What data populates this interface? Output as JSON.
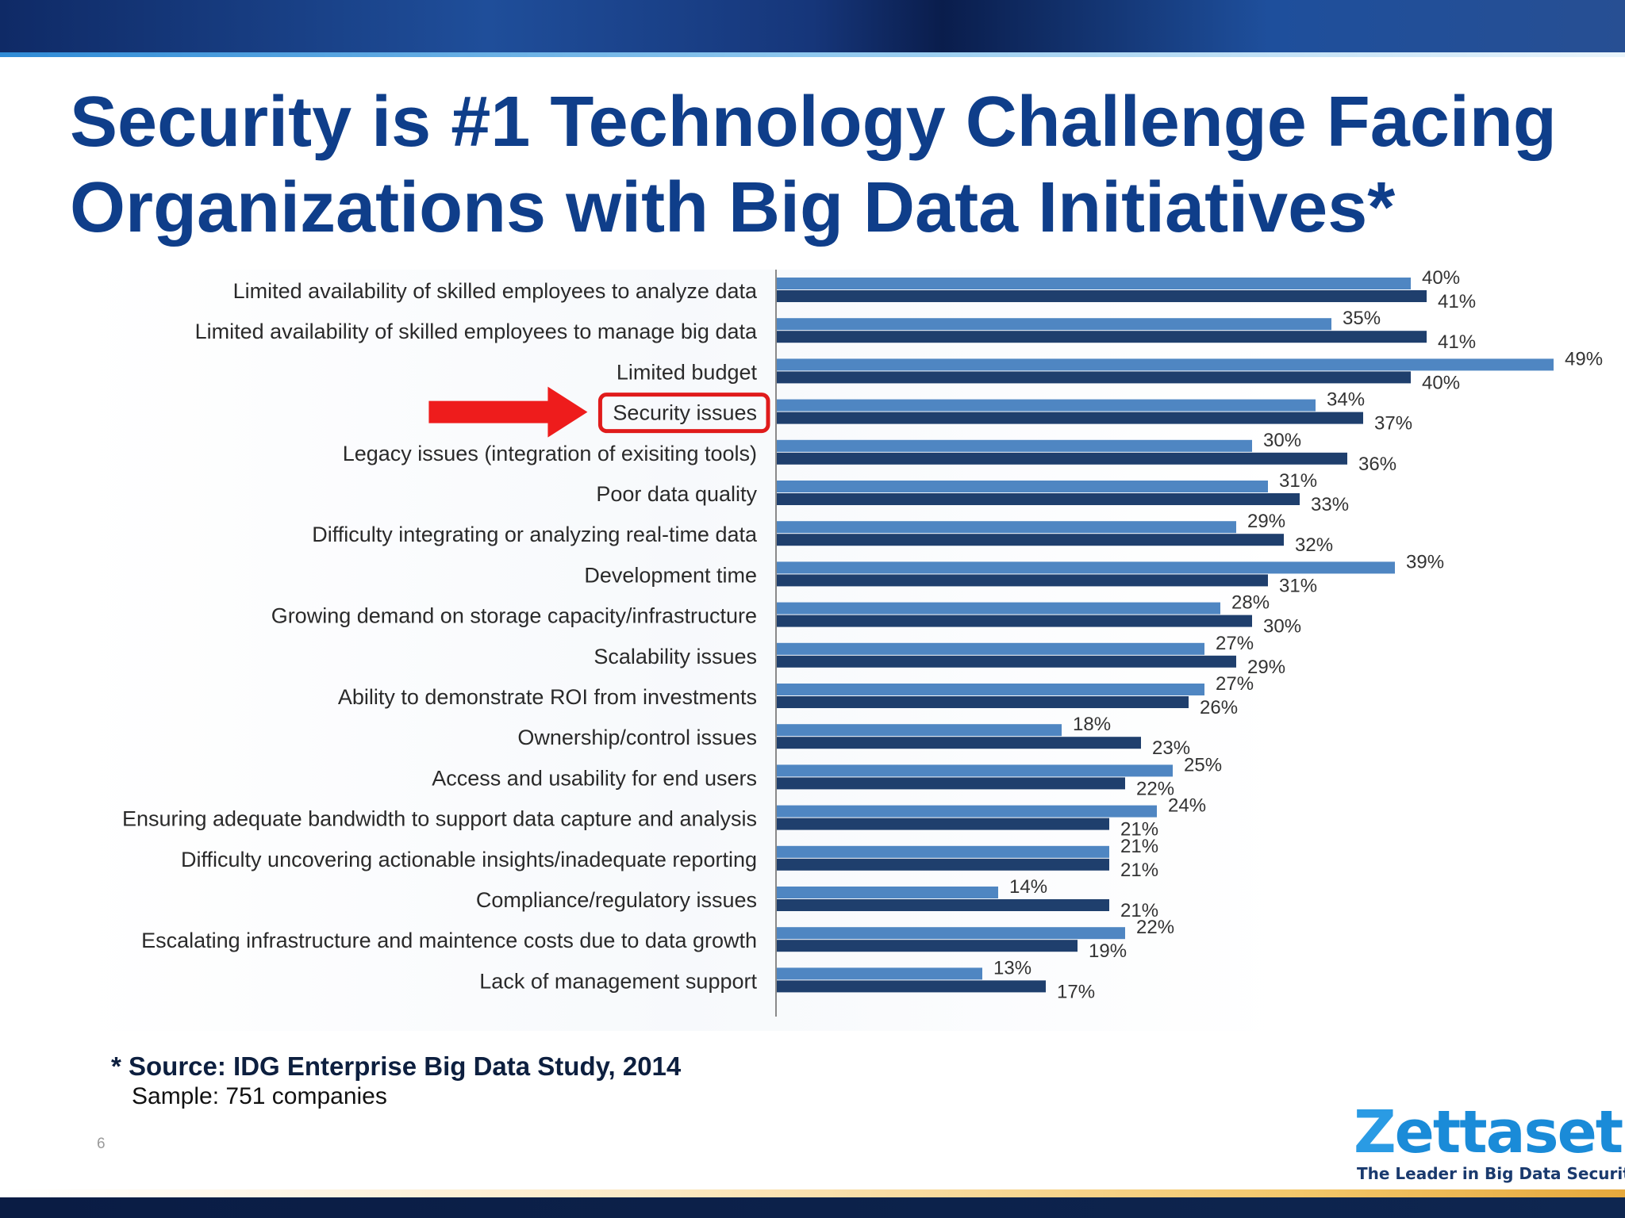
{
  "slide": {
    "title_line1": "Security is #1 Technology Challenge Facing",
    "title_line2": "Organizations with Big Data Initiatives*",
    "source": "* Source: IDG Enterprise Big Data Study, 2014",
    "sample": "Sample: 751 companies",
    "page_number": "6"
  },
  "logo": {
    "name_z": "Z",
    "name_rest": "ettaset",
    "tagline": "The Leader in Big Data Security"
  },
  "highlight": {
    "category": "Security issues",
    "box_color": "#e01b1b",
    "arrow_color": "#ee1c1c"
  },
  "colors": {
    "title": "#0f3e8a",
    "series_light": "#4f86c2",
    "series_dark": "#1f3f6d"
  },
  "chart_data": {
    "type": "bar",
    "orientation": "horizontal",
    "xlim": [
      0,
      50
    ],
    "value_suffix": "%",
    "categories": [
      "Limited availability of skilled employees to analyze data",
      "Limited availability of skilled employees to manage big data",
      "Limited budget",
      "Security issues",
      "Legacy issues (integration of exisiting tools)",
      "Poor data quality",
      "Difficulty integrating or analyzing real-time data",
      "Development time",
      "Growing demand on storage capacity/infrastructure",
      "Scalability issues",
      "Ability to demonstrate ROI from investments",
      "Ownership/control issues",
      "Access and usability for end users",
      "Ensuring adequate bandwidth to support data capture and analysis",
      "Difficulty uncovering actionable insights/inadequate reporting",
      "Compliance/regulatory issues",
      "Escalating infrastructure and maintence costs due to data growth",
      "Lack of management support"
    ],
    "series": [
      {
        "color": "#4f86c2",
        "values": [
          40,
          35,
          49,
          34,
          30,
          31,
          29,
          39,
          28,
          27,
          27,
          18,
          25,
          24,
          21,
          14,
          22,
          13
        ]
      },
      {
        "color": "#1f3f6d",
        "values": [
          41,
          41,
          40,
          37,
          36,
          33,
          32,
          31,
          30,
          29,
          26,
          23,
          22,
          21,
          21,
          21,
          19,
          17
        ]
      }
    ]
  }
}
